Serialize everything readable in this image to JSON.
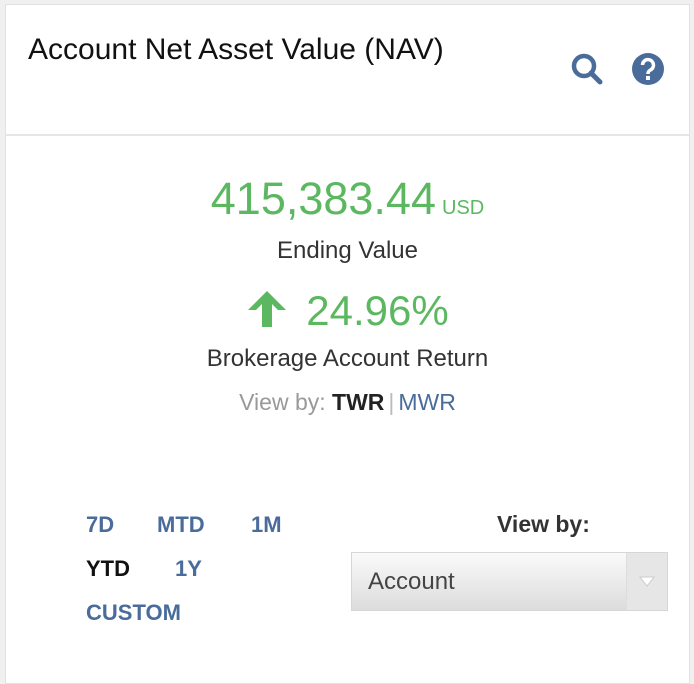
{
  "header": {
    "title": "Account Net Asset Value (NAV)",
    "icons": [
      "search-icon",
      "help-icon"
    ]
  },
  "summary": {
    "value": "415,383.44",
    "currency": "USD",
    "value_label": "Ending Value",
    "return_direction": "up",
    "return_pct": "24.96%",
    "return_label": "Brokerage Account Return",
    "view_by_label": "View by:",
    "view_options": [
      "TWR",
      "MWR"
    ],
    "view_selected": "TWR"
  },
  "periods": {
    "items": [
      "7D",
      "MTD",
      "1M",
      "YTD",
      "1Y",
      "CUSTOM"
    ],
    "selected": "YTD"
  },
  "view_by": {
    "label": "View by:",
    "selected": "Account"
  },
  "colors": {
    "positive": "#5cb860",
    "link": "#4a6c9b"
  }
}
